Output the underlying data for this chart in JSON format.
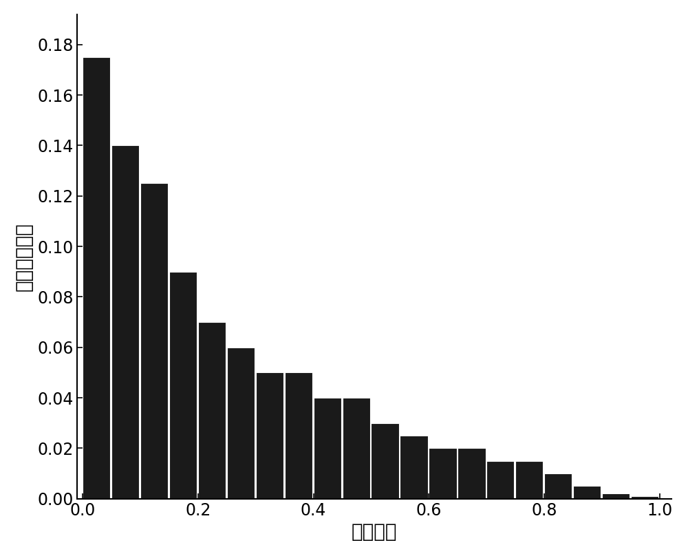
{
  "bar_left_edges": [
    0.0,
    0.05,
    0.1,
    0.15,
    0.2,
    0.25,
    0.3,
    0.35,
    0.4,
    0.45,
    0.5,
    0.55,
    0.6,
    0.65,
    0.7,
    0.75,
    0.8,
    0.85,
    0.9,
    0.95
  ],
  "bar_heights": [
    0.175,
    0.14,
    0.125,
    0.09,
    0.07,
    0.06,
    0.05,
    0.05,
    0.04,
    0.04,
    0.03,
    0.025,
    0.02,
    0.02,
    0.015,
    0.015,
    0.01,
    0.005,
    0.002,
    0.001
  ],
  "bar_width": 0.048,
  "bar_color": "#1a1a1a",
  "bar_edgecolor": "#ffffff",
  "bar_linewidth": 0.8,
  "xlabel": "风电出力",
  "ylabel": "风电出力概率",
  "xlabel_fontsize": 20,
  "ylabel_fontsize": 20,
  "tick_fontsize": 17,
  "xlim": [
    -0.01,
    1.02
  ],
  "ylim": [
    0.0,
    0.192
  ],
  "xticks": [
    0.0,
    0.2,
    0.4,
    0.6,
    0.8,
    1.0
  ],
  "yticks": [
    0.0,
    0.02,
    0.04,
    0.06,
    0.08,
    0.1,
    0.12,
    0.14,
    0.16,
    0.18
  ],
  "background_color": "#ffffff",
  "spine_color": "#000000"
}
